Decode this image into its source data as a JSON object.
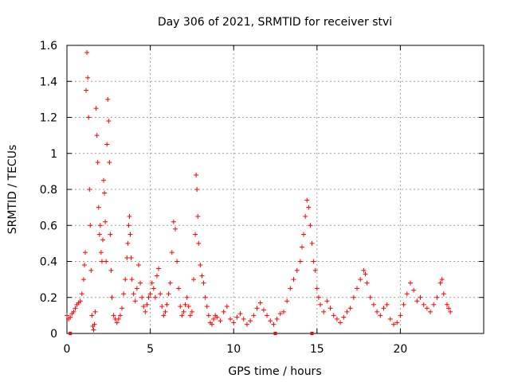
{
  "chart_data": {
    "type": "scatter",
    "title": "Day 306 of 2021, SRMTID for receiver stvi",
    "xlabel": "GPS time / hours",
    "ylabel": "SRMTID / TECUs",
    "xlim": [
      0,
      25
    ],
    "ylim": [
      0,
      1.6
    ],
    "x_ticks": [
      0,
      5,
      10,
      15,
      20
    ],
    "x_tick_labels": [
      "0",
      "5",
      "10",
      "15",
      "20"
    ],
    "y_ticks": [
      0,
      0.2,
      0.4,
      0.6,
      0.8,
      1.0,
      1.2,
      1.4,
      1.6
    ],
    "y_tick_labels": [
      "0",
      "0.2",
      "0.4",
      "0.6",
      "0.8",
      "1",
      "1.2",
      "1.4",
      "1.6"
    ],
    "grid": true,
    "marker": "+",
    "series_color": "#ff0000",
    "baseline_markers_x": [
      0.2,
      12.5,
      14.7
    ],
    "series": [
      {
        "name": "SRMTID",
        "points": [
          [
            0.0,
            0.1
          ],
          [
            0.1,
            0.08
          ],
          [
            0.2,
            0.09
          ],
          [
            0.3,
            0.11
          ],
          [
            0.4,
            0.12
          ],
          [
            0.5,
            0.14
          ],
          [
            0.6,
            0.16
          ],
          [
            0.7,
            0.17
          ],
          [
            0.8,
            0.18
          ],
          [
            0.9,
            0.22
          ],
          [
            1.0,
            0.3
          ],
          [
            1.05,
            0.38
          ],
          [
            1.1,
            0.45
          ],
          [
            1.15,
            1.35
          ],
          [
            1.2,
            1.56
          ],
          [
            1.25,
            1.42
          ],
          [
            1.3,
            1.2
          ],
          [
            1.35,
            0.8
          ],
          [
            1.4,
            0.6
          ],
          [
            1.45,
            0.35
          ],
          [
            1.5,
            0.1
          ],
          [
            1.55,
            0.04
          ],
          [
            1.6,
            0.02
          ],
          [
            1.65,
            0.05
          ],
          [
            1.7,
            0.12
          ],
          [
            1.75,
            1.25
          ],
          [
            1.8,
            1.1
          ],
          [
            1.85,
            0.95
          ],
          [
            1.9,
            0.7
          ],
          [
            1.95,
            0.55
          ],
          [
            2.0,
            0.6
          ],
          [
            2.05,
            0.45
          ],
          [
            2.1,
            0.4
          ],
          [
            2.15,
            0.52
          ],
          [
            2.2,
            0.85
          ],
          [
            2.25,
            0.78
          ],
          [
            2.3,
            0.62
          ],
          [
            2.35,
            0.4
          ],
          [
            2.4,
            1.05
          ],
          [
            2.45,
            1.3
          ],
          [
            2.5,
            1.18
          ],
          [
            2.55,
            0.95
          ],
          [
            2.6,
            0.55
          ],
          [
            2.65,
            0.35
          ],
          [
            2.7,
            0.2
          ],
          [
            2.8,
            0.1
          ],
          [
            2.9,
            0.08
          ],
          [
            3.0,
            0.06
          ],
          [
            3.1,
            0.08
          ],
          [
            3.2,
            0.1
          ],
          [
            3.3,
            0.14
          ],
          [
            3.4,
            0.22
          ],
          [
            3.5,
            0.3
          ],
          [
            3.6,
            0.42
          ],
          [
            3.65,
            0.5
          ],
          [
            3.7,
            0.6
          ],
          [
            3.75,
            0.65
          ],
          [
            3.8,
            0.55
          ],
          [
            3.85,
            0.42
          ],
          [
            3.9,
            0.3
          ],
          [
            4.0,
            0.22
          ],
          [
            4.1,
            0.18
          ],
          [
            4.2,
            0.25
          ],
          [
            4.3,
            0.38
          ],
          [
            4.4,
            0.28
          ],
          [
            4.5,
            0.2
          ],
          [
            4.6,
            0.15
          ],
          [
            4.7,
            0.12
          ],
          [
            4.8,
            0.16
          ],
          [
            4.9,
            0.2
          ],
          [
            5.0,
            0.22
          ],
          [
            5.1,
            0.28
          ],
          [
            5.2,
            0.25
          ],
          [
            5.3,
            0.2
          ],
          [
            5.4,
            0.32
          ],
          [
            5.5,
            0.36
          ],
          [
            5.6,
            0.22
          ],
          [
            5.7,
            0.15
          ],
          [
            5.8,
            0.1
          ],
          [
            5.9,
            0.12
          ],
          [
            6.0,
            0.16
          ],
          [
            6.1,
            0.22
          ],
          [
            6.2,
            0.28
          ],
          [
            6.3,
            0.45
          ],
          [
            6.4,
            0.62
          ],
          [
            6.5,
            0.58
          ],
          [
            6.6,
            0.4
          ],
          [
            6.7,
            0.25
          ],
          [
            6.8,
            0.15
          ],
          [
            6.9,
            0.1
          ],
          [
            7.0,
            0.12
          ],
          [
            7.1,
            0.16
          ],
          [
            7.2,
            0.2
          ],
          [
            7.3,
            0.15
          ],
          [
            7.4,
            0.1
          ],
          [
            7.5,
            0.12
          ],
          [
            7.6,
            0.3
          ],
          [
            7.7,
            0.55
          ],
          [
            7.75,
            0.88
          ],
          [
            7.8,
            0.8
          ],
          [
            7.85,
            0.65
          ],
          [
            7.9,
            0.5
          ],
          [
            8.0,
            0.38
          ],
          [
            8.1,
            0.32
          ],
          [
            8.2,
            0.28
          ],
          [
            8.3,
            0.2
          ],
          [
            8.4,
            0.15
          ],
          [
            8.5,
            0.1
          ],
          [
            8.6,
            0.06
          ],
          [
            8.7,
            0.05
          ],
          [
            8.8,
            0.08
          ],
          [
            8.9,
            0.1
          ],
          [
            9.0,
            0.09
          ],
          [
            9.2,
            0.07
          ],
          [
            9.4,
            0.12
          ],
          [
            9.6,
            0.15
          ],
          [
            9.8,
            0.08
          ],
          [
            10.0,
            0.06
          ],
          [
            10.2,
            0.09
          ],
          [
            10.4,
            0.11
          ],
          [
            10.6,
            0.08
          ],
          [
            10.8,
            0.05
          ],
          [
            11.0,
            0.07
          ],
          [
            11.2,
            0.1
          ],
          [
            11.4,
            0.14
          ],
          [
            11.6,
            0.17
          ],
          [
            11.8,
            0.13
          ],
          [
            12.0,
            0.1
          ],
          [
            12.2,
            0.07
          ],
          [
            12.4,
            0.05
          ],
          [
            12.6,
            0.08
          ],
          [
            12.8,
            0.11
          ],
          [
            13.0,
            0.12
          ],
          [
            13.2,
            0.18
          ],
          [
            13.4,
            0.25
          ],
          [
            13.6,
            0.3
          ],
          [
            13.8,
            0.35
          ],
          [
            14.0,
            0.4
          ],
          [
            14.1,
            0.48
          ],
          [
            14.2,
            0.55
          ],
          [
            14.3,
            0.65
          ],
          [
            14.4,
            0.74
          ],
          [
            14.5,
            0.7
          ],
          [
            14.6,
            0.6
          ],
          [
            14.7,
            0.5
          ],
          [
            14.8,
            0.4
          ],
          [
            14.9,
            0.35
          ],
          [
            15.0,
            0.25
          ],
          [
            15.1,
            0.2
          ],
          [
            15.2,
            0.16
          ],
          [
            15.4,
            0.12
          ],
          [
            15.6,
            0.18
          ],
          [
            15.8,
            0.14
          ],
          [
            16.0,
            0.1
          ],
          [
            16.2,
            0.08
          ],
          [
            16.4,
            0.06
          ],
          [
            16.6,
            0.09
          ],
          [
            16.8,
            0.12
          ],
          [
            17.0,
            0.14
          ],
          [
            17.2,
            0.2
          ],
          [
            17.4,
            0.25
          ],
          [
            17.6,
            0.3
          ],
          [
            17.8,
            0.35
          ],
          [
            17.9,
            0.33
          ],
          [
            18.0,
            0.28
          ],
          [
            18.2,
            0.2
          ],
          [
            18.4,
            0.16
          ],
          [
            18.6,
            0.12
          ],
          [
            18.8,
            0.1
          ],
          [
            19.0,
            0.14
          ],
          [
            19.2,
            0.16
          ],
          [
            19.4,
            0.08
          ],
          [
            19.6,
            0.05
          ],
          [
            19.8,
            0.06
          ],
          [
            20.0,
            0.1
          ],
          [
            20.2,
            0.16
          ],
          [
            20.4,
            0.22
          ],
          [
            20.6,
            0.28
          ],
          [
            20.8,
            0.24
          ],
          [
            21.0,
            0.18
          ],
          [
            21.2,
            0.2
          ],
          [
            21.4,
            0.16
          ],
          [
            21.6,
            0.14
          ],
          [
            21.8,
            0.12
          ],
          [
            22.0,
            0.16
          ],
          [
            22.2,
            0.2
          ],
          [
            22.4,
            0.28
          ],
          [
            22.5,
            0.3
          ],
          [
            22.6,
            0.22
          ],
          [
            22.8,
            0.16
          ],
          [
            22.9,
            0.14
          ],
          [
            23.0,
            0.12
          ]
        ]
      }
    ]
  }
}
